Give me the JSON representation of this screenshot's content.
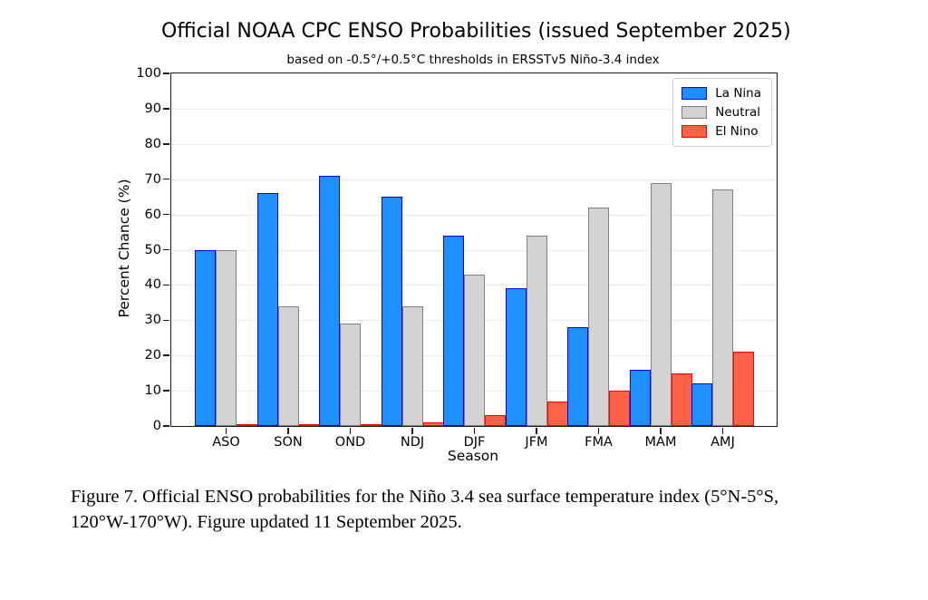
{
  "title": "Official NOAA CPC ENSO Probabilities (issued September 2025)",
  "subtitle": "based on -0.5°/+0.5°C thresholds in ERSSTv5 Niño-3.4 index",
  "chart_data": {
    "type": "bar",
    "categories": [
      "ASO",
      "SON",
      "OND",
      "NDJ",
      "DJF",
      "JFM",
      "FMA",
      "MAM",
      "AMJ"
    ],
    "series": [
      {
        "name": "La Nina",
        "color": "#1e90ff",
        "edge_color": "#0000ff",
        "values": [
          50,
          66,
          71,
          65,
          54,
          39,
          28,
          16,
          12
        ]
      },
      {
        "name": "Neutral",
        "color": "#d3d3d3",
        "edge_color": "#808080",
        "values": [
          50,
          34,
          29,
          34,
          43,
          54,
          62,
          69,
          67
        ]
      },
      {
        "name": "El Nino",
        "color": "#ff6347",
        "edge_color": "#ff0000",
        "values": [
          0,
          0,
          0,
          1,
          3,
          7,
          10,
          15,
          21
        ]
      }
    ],
    "xlabel": "Season",
    "ylabel": "Percent Chance (%)",
    "ylim": [
      0,
      100
    ],
    "yticks": [
      0,
      10,
      20,
      30,
      40,
      50,
      60,
      70,
      80,
      90,
      100
    ],
    "grid": true,
    "legend_position": "top-right"
  },
  "caption": {
    "lines": [
      "Figure 7. Official ENSO probabilities for the Niño 3.4 sea surface temperature index (5°N-5°S,",
      "120°W-170°W). Figure updated 11 September 2025."
    ]
  }
}
